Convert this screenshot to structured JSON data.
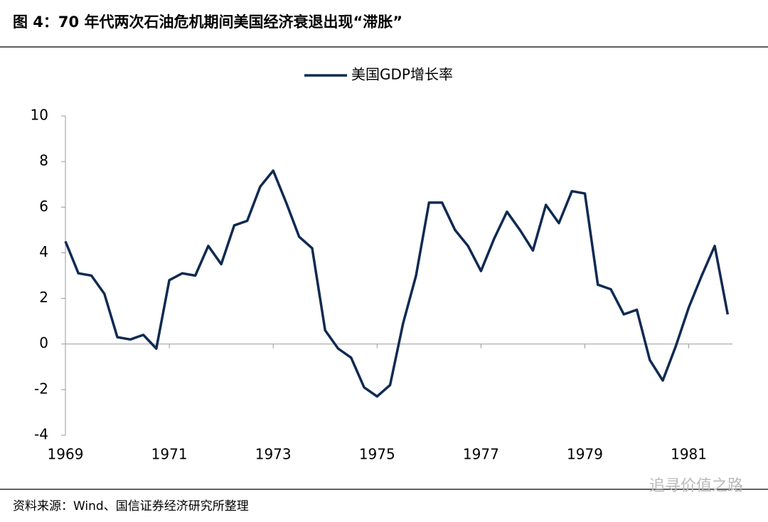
{
  "header": {
    "title": "图 4：70 年代两次石油危机期间美国经济衰退出现“滞胀”"
  },
  "chart_data": {
    "type": "line",
    "x": [
      1969,
      1969.25,
      1969.5,
      1969.75,
      1970,
      1970.25,
      1970.5,
      1970.75,
      1971,
      1971.25,
      1971.5,
      1971.75,
      1972,
      1972.25,
      1972.5,
      1972.75,
      1973,
      1973.25,
      1973.5,
      1973.75,
      1974,
      1974.25,
      1974.5,
      1974.75,
      1975,
      1975.25,
      1975.5,
      1975.75,
      1976,
      1976.25,
      1976.5,
      1976.75,
      1977,
      1977.25,
      1977.5,
      1977.75,
      1978,
      1978.25,
      1978.5,
      1978.75,
      1979,
      1979.25,
      1979.5,
      1979.75,
      1980,
      1980.25,
      1980.5,
      1980.75,
      1981,
      1981.25,
      1981.5,
      1981.75
    ],
    "series": [
      {
        "name": "美国GDP增长率",
        "color": "#0f2a52",
        "values": [
          4.5,
          3.1,
          3.0,
          2.2,
          0.3,
          0.2,
          0.4,
          -0.2,
          2.8,
          3.1,
          3.0,
          4.3,
          3.5,
          5.2,
          5.4,
          6.9,
          7.6,
          6.2,
          4.7,
          4.2,
          0.6,
          -0.2,
          -0.6,
          -1.9,
          -2.3,
          -1.8,
          0.9,
          3.0,
          6.2,
          6.2,
          5.0,
          4.3,
          3.2,
          4.6,
          5.8,
          5.0,
          4.1,
          6.1,
          5.3,
          6.7,
          6.6,
          2.6,
          2.4,
          1.3,
          1.5,
          -0.7,
          -1.6,
          -0.1,
          1.6,
          3.0,
          4.3,
          1.3
        ]
      }
    ],
    "xlim": [
      1969,
      1981.8
    ],
    "xticks": [
      1969,
      1971,
      1973,
      1975,
      1977,
      1979,
      1981
    ],
    "ylim": [
      -4,
      10
    ],
    "yticks": [
      -4,
      -2,
      0,
      2,
      4,
      6,
      8,
      10
    ],
    "legend": "top"
  },
  "footer": {
    "source": "资料来源：Wind、国信证券经济研究所整理",
    "watermark": "追寻价值之路"
  }
}
